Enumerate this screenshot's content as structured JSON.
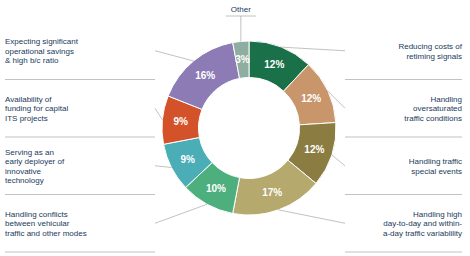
{
  "chart_data": {
    "type": "pie",
    "categories": [
      "Reducing costs of\nretiming signals",
      "Handling\noversaturated\ntraffic conditions",
      "Handling traffic\nspecial events",
      "Handling high\nday-to-day and within-\na-day traffic variablility",
      "Handling conflicts\nbetween vehicular\ntraffic and other modes",
      "Serving as an\nearly deployer of\ninnovative\ntechnology",
      "Availability of\nfunding for capital\nITS projects",
      "Expecting significant\noperational savings\n& high b/c ratio",
      "Other"
    ],
    "values": [
      12,
      12,
      12,
      17,
      10,
      9,
      9,
      16,
      3
    ],
    "value_labels": [
      "12%",
      "12%",
      "12%",
      "17%",
      "10%",
      "9%",
      "9%",
      "16%",
      "3%"
    ],
    "colors": [
      "#1a7048",
      "#c9956a",
      "#8b7d42",
      "#b5a96e",
      "#4caf7d",
      "#4badb5",
      "#d4522a",
      "#8c7bb5",
      "#8fada0"
    ],
    "data_labels": true
  }
}
